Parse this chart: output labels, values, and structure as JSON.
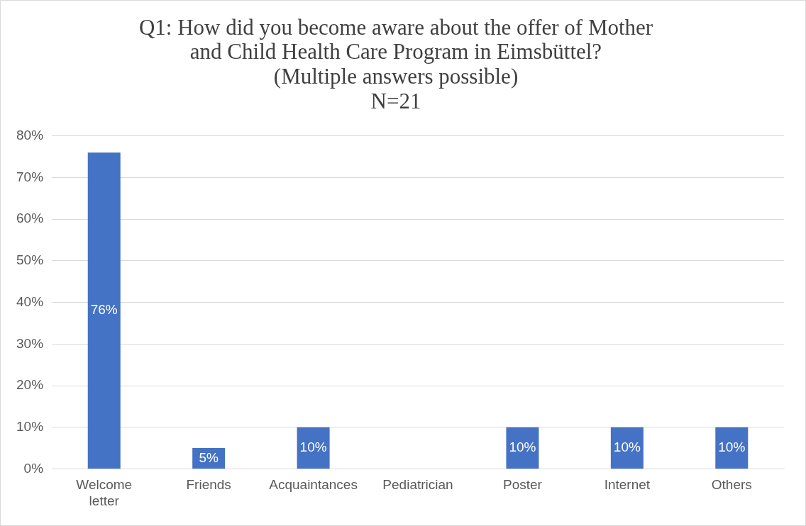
{
  "chart_data": {
    "type": "bar",
    "title": "Q1: How did you become aware about the offer of Mother\nand Child Health Care Program in Eimsbüttel?\n(Multiple answers possible)\nN=21",
    "categories": [
      "Welcome letter",
      "Friends",
      "Acquaintances",
      "Pediatrician",
      "Poster",
      "Internet",
      "Others"
    ],
    "values": [
      76,
      5,
      10,
      0,
      10,
      10,
      10
    ],
    "value_labels": [
      "76%",
      "5%",
      "10%",
      null,
      "10%",
      "10%",
      "10%"
    ],
    "color": "#4472c4",
    "ylim": [
      0,
      80
    ],
    "yticks": [
      {
        "value": 0,
        "label": "0%"
      },
      {
        "value": 10,
        "label": "10%"
      },
      {
        "value": 20,
        "label": "20%"
      },
      {
        "value": 30,
        "label": "30%"
      },
      {
        "value": 40,
        "label": "40%"
      },
      {
        "value": 50,
        "label": "50%"
      },
      {
        "value": 60,
        "label": "60%"
      },
      {
        "value": 70,
        "label": "70%"
      },
      {
        "value": 80,
        "label": "80%"
      }
    ],
    "grid": "y",
    "legend": false
  }
}
